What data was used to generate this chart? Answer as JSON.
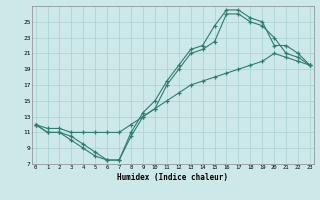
{
  "xlabel": "Humidex (Indice chaleur)",
  "bg_color": "#cce8e8",
  "grid_color": "#aad0d0",
  "line_color": "#2e7d6e",
  "xlim": [
    0,
    23
  ],
  "ylim": [
    7,
    27
  ],
  "yticks": [
    7,
    9,
    11,
    13,
    15,
    17,
    19,
    21,
    23,
    25
  ],
  "xticks": [
    0,
    1,
    2,
    3,
    4,
    5,
    6,
    7,
    8,
    9,
    10,
    11,
    12,
    13,
    14,
    15,
    16,
    17,
    18,
    19,
    20,
    21,
    22,
    23
  ],
  "line1_x": [
    0,
    1,
    2,
    3,
    4,
    5,
    6,
    7,
    8,
    9,
    10,
    11,
    12,
    13,
    14,
    15,
    16,
    17,
    18,
    19,
    20,
    21,
    22,
    23
  ],
  "line1_y": [
    12,
    11,
    11,
    10.5,
    9.5,
    8.5,
    7.5,
    7.5,
    11,
    13.5,
    15,
    17.5,
    19.5,
    21.5,
    22,
    24.5,
    26.5,
    26.5,
    25.5,
    25,
    22,
    22,
    21,
    19.5
  ],
  "line2_x": [
    0,
    1,
    2,
    3,
    4,
    5,
    6,
    7,
    8,
    9,
    10,
    11,
    12,
    13,
    14,
    15,
    16,
    17,
    18,
    19,
    20,
    21,
    22,
    23
  ],
  "line2_y": [
    12,
    11,
    11,
    10,
    9,
    8,
    7.5,
    7.5,
    10.5,
    13,
    14,
    17,
    19,
    21,
    21.5,
    22.5,
    26,
    26,
    25,
    24.5,
    23,
    21,
    20.5,
    19.5
  ],
  "line3_x": [
    0,
    1,
    2,
    3,
    4,
    5,
    6,
    7,
    8,
    9,
    10,
    11,
    12,
    13,
    14,
    15,
    16,
    17,
    18,
    19,
    20,
    21,
    22,
    23
  ],
  "line3_y": [
    12,
    11.5,
    11.5,
    11,
    11,
    11,
    11,
    11,
    12,
    13,
    14,
    15,
    16,
    17,
    17.5,
    18,
    18.5,
    19,
    19.5,
    20,
    21,
    20.5,
    20,
    19.5
  ],
  "marker_x1": [
    0,
    1,
    2,
    3,
    5,
    6,
    7,
    9,
    11,
    13,
    14,
    15,
    16,
    17,
    18,
    19,
    20,
    21,
    22,
    23
  ],
  "marker_x2": [
    0,
    1,
    2,
    3,
    5,
    6,
    7,
    9,
    11,
    13,
    14,
    15,
    16,
    17,
    18,
    19,
    20,
    21,
    22,
    23
  ],
  "marker_x3": [
    0,
    1,
    2,
    9,
    11,
    13,
    15,
    17,
    19,
    21,
    22,
    23
  ]
}
